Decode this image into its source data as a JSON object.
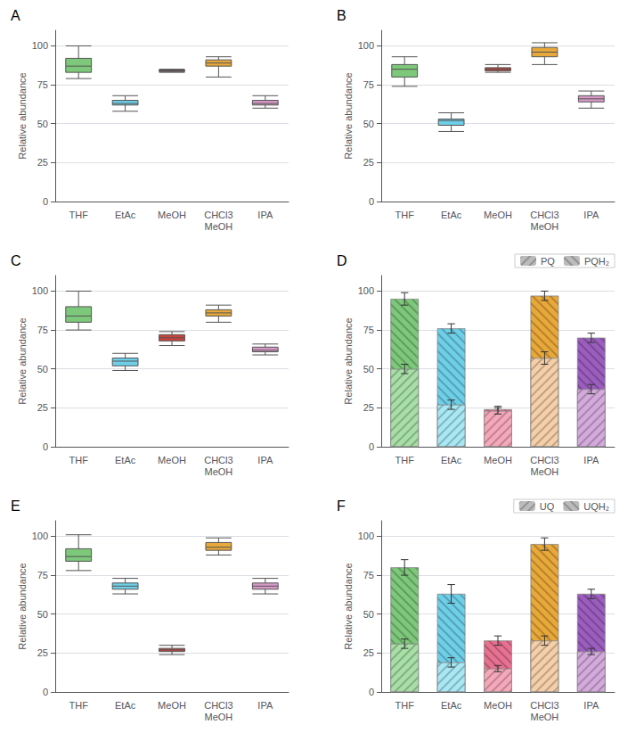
{
  "chart_data": [
    {
      "type": "boxplot",
      "title": "A",
      "categories": [
        "THF",
        "EtAc",
        "MeOH",
        "CHCl3\nMeOH",
        "IPA"
      ],
      "ylabel": "Relative abundance",
      "ylim": [
        0,
        110
      ],
      "yticks": [
        0,
        25,
        50,
        75,
        100
      ],
      "grid": true,
      "series": [
        {
          "colors": [
            "#7DC87A",
            "#6ECFE8",
            "#C8423A",
            "#E8A83A",
            "#D899C8"
          ],
          "values": [
            [
              79,
              83,
              87,
              92,
              100
            ],
            [
              58,
              62,
              63,
              65,
              68
            ],
            [
              83,
              83.5,
              84,
              84.5,
              85
            ],
            [
              80,
              87,
              89,
              91,
              93
            ],
            [
              60,
              62,
              63,
              65,
              68
            ]
          ]
        }
      ]
    },
    {
      "type": "boxplot",
      "title": "B",
      "categories": [
        "THF",
        "EtAc",
        "MeOH",
        "CHCl3\nMeOH",
        "IPA"
      ],
      "ylabel": "Relative abundance",
      "ylim": [
        0,
        110
      ],
      "yticks": [
        0,
        25,
        50,
        75,
        100
      ],
      "grid": true,
      "series": [
        {
          "colors": [
            "#7DC87A",
            "#6ECFE8",
            "#C8423A",
            "#E8A83A",
            "#D899C8"
          ],
          "values": [
            [
              74,
              80,
              85,
              88,
              93
            ],
            [
              45,
              49,
              52,
              53,
              57
            ],
            [
              83,
              84,
              85,
              86,
              88
            ],
            [
              88,
              93,
              96,
              99,
              102
            ],
            [
              60,
              64,
              66,
              68,
              71
            ]
          ]
        }
      ]
    },
    {
      "type": "boxplot",
      "title": "C",
      "categories": [
        "THF",
        "EtAc",
        "MeOH",
        "CHCl3\nMeOH",
        "IPA"
      ],
      "ylabel": "Relative abundance",
      "ylim": [
        0,
        110
      ],
      "yticks": [
        0,
        25,
        50,
        75,
        100
      ],
      "grid": true,
      "series": [
        {
          "colors": [
            "#7DC87A",
            "#6ECFE8",
            "#C8423A",
            "#E8A83A",
            "#D899C8"
          ],
          "values": [
            [
              75,
              80,
              84,
              90,
              100
            ],
            [
              49,
              52,
              55,
              57,
              60
            ],
            [
              65,
              68,
              70,
              72,
              74
            ],
            [
              80,
              84,
              86,
              88,
              91
            ],
            [
              59,
              61,
              62,
              64,
              66
            ]
          ]
        }
      ]
    },
    {
      "type": "bar",
      "title": "D",
      "categories": [
        "THF",
        "EtAc",
        "MeOH",
        "CHCl3\nMeOH",
        "IPA"
      ],
      "ylabel": "Relative abundance",
      "ylim": [
        0,
        110
      ],
      "yticks": [
        0,
        25,
        50,
        75,
        100
      ],
      "grid": true,
      "legend": "upper right",
      "series": [
        {
          "name": "PQH₂",
          "color": "#bbbbbb",
          "colors": [
            "#7DC87A",
            "#6ECFE8",
            "#E87090",
            "#E8A83A",
            "#9B5DBE"
          ],
          "values": [
            95,
            76,
            24,
            97,
            70
          ],
          "errors": [
            4,
            3,
            2,
            3,
            3
          ]
        },
        {
          "name": "PQ",
          "color": "#bbbbbb",
          "colors": [
            "#A8DFA6",
            "#A8E8F5",
            "#F5A8BA",
            "#F5CFA8",
            "#D4AADD"
          ],
          "values": [
            50,
            27,
            23,
            57,
            37
          ],
          "errors": [
            3,
            3,
            2,
            4,
            3
          ]
        }
      ]
    },
    {
      "type": "boxplot",
      "title": "E",
      "categories": [
        "THF",
        "EtAc",
        "MeOH",
        "CHCl3\nMeOH",
        "IPA"
      ],
      "ylabel": "Relative abundance",
      "ylim": [
        0,
        110
      ],
      "yticks": [
        0,
        25,
        50,
        75,
        100
      ],
      "grid": true,
      "series": [
        {
          "colors": [
            "#7DC87A",
            "#6ECFE8",
            "#C8423A",
            "#E8A83A",
            "#D899C8"
          ],
          "values": [
            [
              78,
              84,
              87,
              92,
              101
            ],
            [
              63,
              66,
              68,
              70,
              73
            ],
            [
              24,
              26,
              27,
              28,
              30
            ],
            [
              88,
              91,
              93,
              96,
              99
            ],
            [
              63,
              66,
              68,
              70,
              73
            ]
          ]
        }
      ]
    },
    {
      "type": "bar",
      "title": "F",
      "categories": [
        "THF",
        "EtAc",
        "MeOH",
        "CHCl3\nMeOH",
        "IPA"
      ],
      "ylabel": "Relative abundance",
      "ylim": [
        0,
        110
      ],
      "yticks": [
        0,
        25,
        50,
        75,
        100
      ],
      "grid": true,
      "legend": "upper right",
      "series": [
        {
          "name": "UQH₂",
          "color": "#bbbbbb",
          "colors": [
            "#7DC87A",
            "#6ECFE8",
            "#E87090",
            "#E8A83A",
            "#9B5DBE"
          ],
          "values": [
            80,
            63,
            33,
            95,
            63
          ],
          "errors": [
            5,
            6,
            3,
            4,
            3
          ]
        },
        {
          "name": "UQ",
          "color": "#bbbbbb",
          "colors": [
            "#A8DFA6",
            "#A8E8F5",
            "#F5A8BA",
            "#F5CFA8",
            "#D4AADD"
          ],
          "values": [
            31,
            19,
            15,
            33,
            26
          ],
          "errors": [
            3,
            3,
            2,
            3,
            2
          ]
        }
      ]
    }
  ]
}
